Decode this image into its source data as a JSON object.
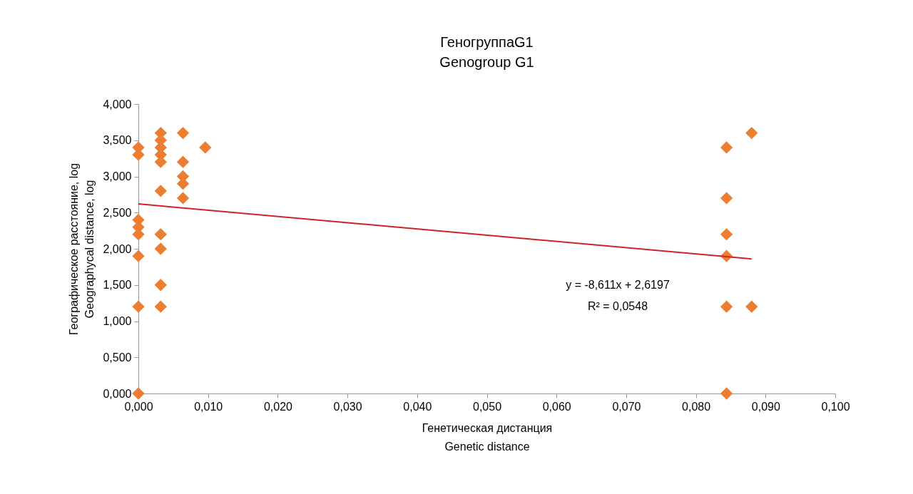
{
  "chart_data": {
    "type": "scatter",
    "title": "ГеногруппаG1\nGenogroup G1",
    "xlabel": "Генетическая дистанция\nGenetic distance",
    "ylabel": "Географическое расстояние, log\nGeographycal  distance, log",
    "annotations": [
      "y = -8,611x + 2,6197",
      "R² = 0,0548"
    ],
    "grid": false,
    "legend": false,
    "xlim": [
      0,
      0.1
    ],
    "ylim": [
      0,
      4
    ],
    "xticks": [
      {
        "value": 0,
        "label": "0,000"
      },
      {
        "value": 0.01,
        "label": "0,010"
      },
      {
        "value": 0.02,
        "label": "0,020"
      },
      {
        "value": 0.03,
        "label": "0,030"
      },
      {
        "value": 0.04,
        "label": "0,040"
      },
      {
        "value": 0.05,
        "label": "0,050"
      },
      {
        "value": 0.06,
        "label": "0,060"
      },
      {
        "value": 0.07,
        "label": "0,070"
      },
      {
        "value": 0.08,
        "label": "0,080"
      },
      {
        "value": 0.09,
        "label": "0,090"
      },
      {
        "value": 0.1,
        "label": "0,100"
      }
    ],
    "yticks": [
      {
        "value": 0,
        "label": "0,000"
      },
      {
        "value": 0.5,
        "label": "0,500"
      },
      {
        "value": 1,
        "label": "1,000"
      },
      {
        "value": 1.5,
        "label": "1,500"
      },
      {
        "value": 2,
        "label": "2,000"
      },
      {
        "value": 2.5,
        "label": "2,500"
      },
      {
        "value": 3,
        "label": "3,000"
      },
      {
        "value": 3.5,
        "label": "3,500"
      },
      {
        "value": 4,
        "label": "4,000"
      }
    ],
    "series": [
      {
        "marker": "diamond",
        "color": "#ed7d31",
        "x": [
          0,
          0,
          0,
          0,
          0,
          0,
          0,
          0,
          0.0032,
          0.0032,
          0.0032,
          0.0032,
          0.0032,
          0.0032,
          0.0032,
          0.0032,
          0.0032,
          0.0032,
          0.0064,
          0.0064,
          0.0064,
          0.0064,
          0.0064,
          0.0096,
          0.0844,
          0.0844,
          0.0844,
          0.0844,
          0.0844,
          0.0844,
          0.088,
          0.088
        ],
        "values": [
          3.4,
          3.3,
          2.4,
          2.3,
          2.2,
          1.9,
          1.2,
          0,
          3.6,
          3.5,
          3.4,
          3.3,
          3.2,
          2.8,
          2.2,
          2.0,
          1.5,
          1.2,
          3.6,
          3.2,
          3.0,
          2.9,
          2.7,
          3.4,
          3.4,
          2.7,
          2.2,
          1.9,
          1.2,
          0,
          3.6,
          1.2
        ]
      },
      {
        "type": "line",
        "color": "#d0202a",
        "x": [
          0,
          0.088
        ],
        "values": [
          2.62,
          1.86
        ]
      }
    ]
  }
}
